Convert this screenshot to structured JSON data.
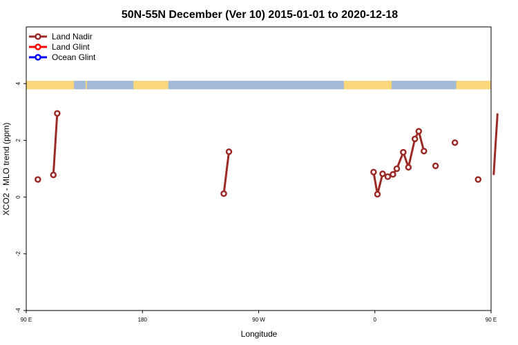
{
  "chart_data": {
    "type": "line",
    "title": "50N-55N December (Ver 10)   2015-01-01 to 2020-12-18",
    "xlabel": "Longitude",
    "ylabel": "XCO2 - MLO trend (ppm)",
    "xlim": [
      90,
      450
    ],
    "ylim": [
      -4,
      6
    ],
    "x_ticks": [
      {
        "value": 90,
        "label": "90 E"
      },
      {
        "value": 180,
        "label": "180"
      },
      {
        "value": 270,
        "label": "90 W"
      },
      {
        "value": 360,
        "label": "0"
      },
      {
        "value": 450,
        "label": "90 E"
      }
    ],
    "y_ticks": [
      {
        "value": -4,
        "label": "-4"
      },
      {
        "value": -2,
        "label": "-2"
      },
      {
        "value": 0,
        "label": "0"
      },
      {
        "value": 2,
        "label": "2"
      },
      {
        "value": 4,
        "label": "4"
      }
    ],
    "legend_position": "top-left",
    "series": [
      {
        "name": "Land Nadir",
        "color": "#9b2a26",
        "segments": [
          [
            {
              "x": 99,
              "y": 0.62
            }
          ],
          [
            {
              "x": 111,
              "y": 0.78
            },
            {
              "x": 114,
              "y": 2.95
            }
          ],
          [
            {
              "x": 243,
              "y": 0.12
            },
            {
              "x": 247,
              "y": 1.6
            }
          ],
          [
            {
              "x": 359,
              "y": 0.88
            },
            {
              "x": 362,
              "y": 0.1
            },
            {
              "x": 366,
              "y": 0.82
            },
            {
              "x": 370,
              "y": 0.72
            },
            {
              "x": 374,
              "y": 0.8
            },
            {
              "x": 377,
              "y": 1.0
            },
            {
              "x": 382,
              "y": 1.58
            },
            {
              "x": 386,
              "y": 1.05
            },
            {
              "x": 391,
              "y": 2.05
            },
            {
              "x": 394,
              "y": 2.32
            },
            {
              "x": 398,
              "y": 1.62
            }
          ],
          [
            {
              "x": 407,
              "y": 1.1
            }
          ],
          [
            {
              "x": 422,
              "y": 1.92
            }
          ],
          [
            {
              "x": 440,
              "y": 0.62
            }
          ],
          [
            {
              "x": 452,
              "y": 0.78
            },
            {
              "x": 455,
              "y": 2.95
            }
          ]
        ]
      },
      {
        "name": "Land Glint",
        "color": "#ff0000",
        "segments": []
      },
      {
        "name": "Ocean Glint",
        "color": "#0000ff",
        "segments": []
      }
    ],
    "land_band": {
      "y_range": [
        3.8,
        4.1
      ],
      "ocean_color": "#a3b9d8",
      "land_color": "#f9d77a",
      "land_lon_ranges": [
        [
          90,
          127
        ],
        [
          136,
          137
        ],
        [
          173,
          200
        ],
        [
          336,
          373
        ],
        [
          423,
          451
        ]
      ]
    }
  }
}
